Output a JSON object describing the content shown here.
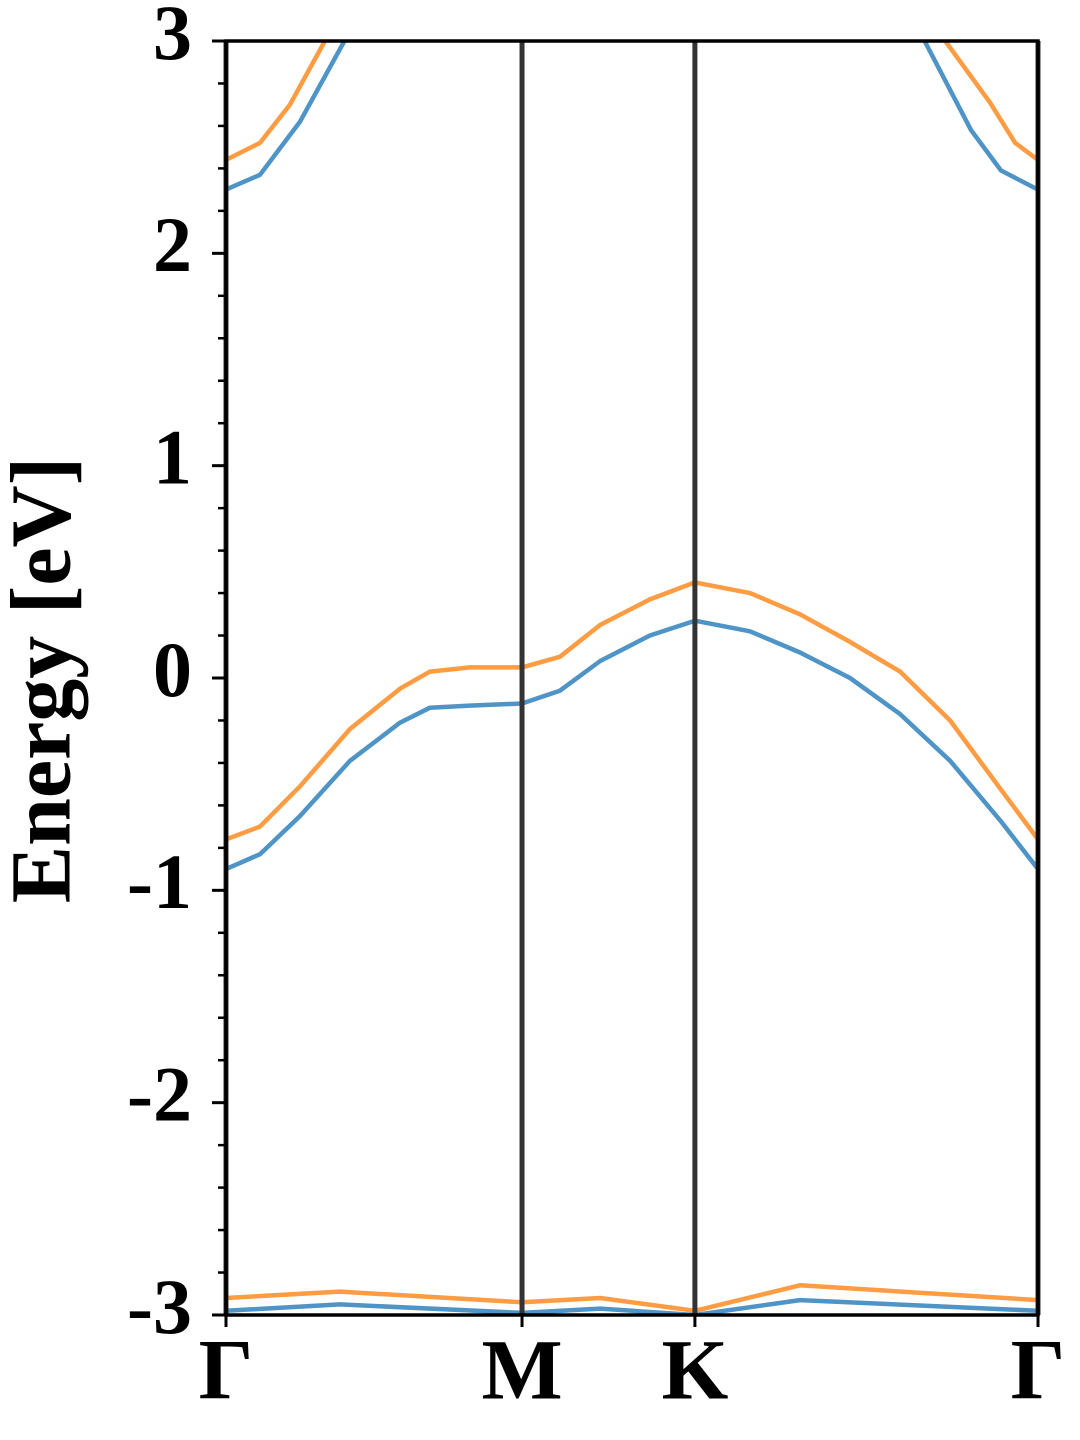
{
  "chart_data": {
    "type": "line",
    "ylabel": "Energy [eV]",
    "xlim": [
      0,
      2.743
    ],
    "xticks": [
      {
        "value": 0,
        "label": "Γ"
      },
      {
        "value": 1,
        "label": "M"
      },
      {
        "value": 1.584,
        "label": "K"
      },
      {
        "value": 2.743,
        "label": "Γ"
      }
    ],
    "ylim": [
      -3,
      3
    ],
    "yticks": [
      -3,
      -2,
      -1,
      0,
      1,
      2,
      3
    ],
    "yminorticks": [
      -2.8,
      -2.6,
      -2.4,
      -2.2,
      -1.8,
      -1.6,
      -1.4,
      -1.2,
      -0.8,
      -0.6,
      -0.4,
      -0.2,
      0.2,
      0.4,
      0.6,
      0.8,
      1.2,
      1.4,
      1.6,
      1.8,
      2.2,
      2.4,
      2.6,
      2.8
    ],
    "series": [
      {
        "color": "#4f94c7",
        "x": [
          0,
          0.115,
          0.25,
          0.4,
          0.5,
          2.36,
          2.517,
          2.618,
          2.743
        ],
        "values": [
          2.3,
          2.37,
          2.62,
          3.0,
          null,
          3.0,
          2.58,
          2.39,
          2.3
        ]
      },
      {
        "color": "#fd9c42",
        "x": [
          0,
          0.115,
          0.216,
          0.334,
          0.5,
          2.43,
          2.581,
          2.666,
          2.743
        ],
        "values": [
          2.44,
          2.52,
          2.7,
          3.0,
          null,
          3.0,
          2.71,
          2.52,
          2.44
        ]
      },
      {
        "color": "#4f94c7",
        "x": [
          0,
          0.115,
          0.25,
          0.419,
          0.588,
          0.689,
          0.824,
          1,
          1.128,
          1.264,
          1.432,
          1.584,
          1.77,
          1.939,
          2.108,
          2.277,
          2.446,
          2.615,
          2.743
        ],
        "values": [
          -0.9,
          -0.83,
          -0.65,
          -0.39,
          -0.21,
          -0.14,
          -0.13,
          -0.12,
          -0.06,
          0.08,
          0.2,
          0.27,
          0.22,
          0.12,
          0.0,
          -0.17,
          -0.39,
          -0.67,
          -0.9
        ]
      },
      {
        "color": "#fd9c42",
        "x": [
          0,
          0.115,
          0.25,
          0.419,
          0.588,
          0.689,
          0.824,
          1,
          1.128,
          1.264,
          1.432,
          1.584,
          1.77,
          1.939,
          2.108,
          2.277,
          2.446,
          2.615,
          2.743
        ],
        "values": [
          -0.76,
          -0.7,
          -0.51,
          -0.24,
          -0.05,
          0.03,
          0.05,
          0.05,
          0.1,
          0.25,
          0.37,
          0.45,
          0.4,
          0.3,
          0.17,
          0.03,
          -0.2,
          -0.52,
          -0.76
        ]
      },
      {
        "color": "#4f94c7",
        "x": [
          0,
          0.385,
          1,
          1.264,
          1.584,
          1.939,
          2.743
        ],
        "values": [
          -2.98,
          -2.95,
          -2.99,
          -2.97,
          -3.0,
          -2.93,
          -2.98
        ]
      },
      {
        "color": "#fd9c42",
        "x": [
          0,
          0.385,
          1,
          1.264,
          1.584,
          1.939,
          2.743
        ],
        "values": [
          -2.92,
          -2.89,
          -2.94,
          -2.92,
          -2.98,
          -2.86,
          -2.93
        ]
      }
    ]
  }
}
